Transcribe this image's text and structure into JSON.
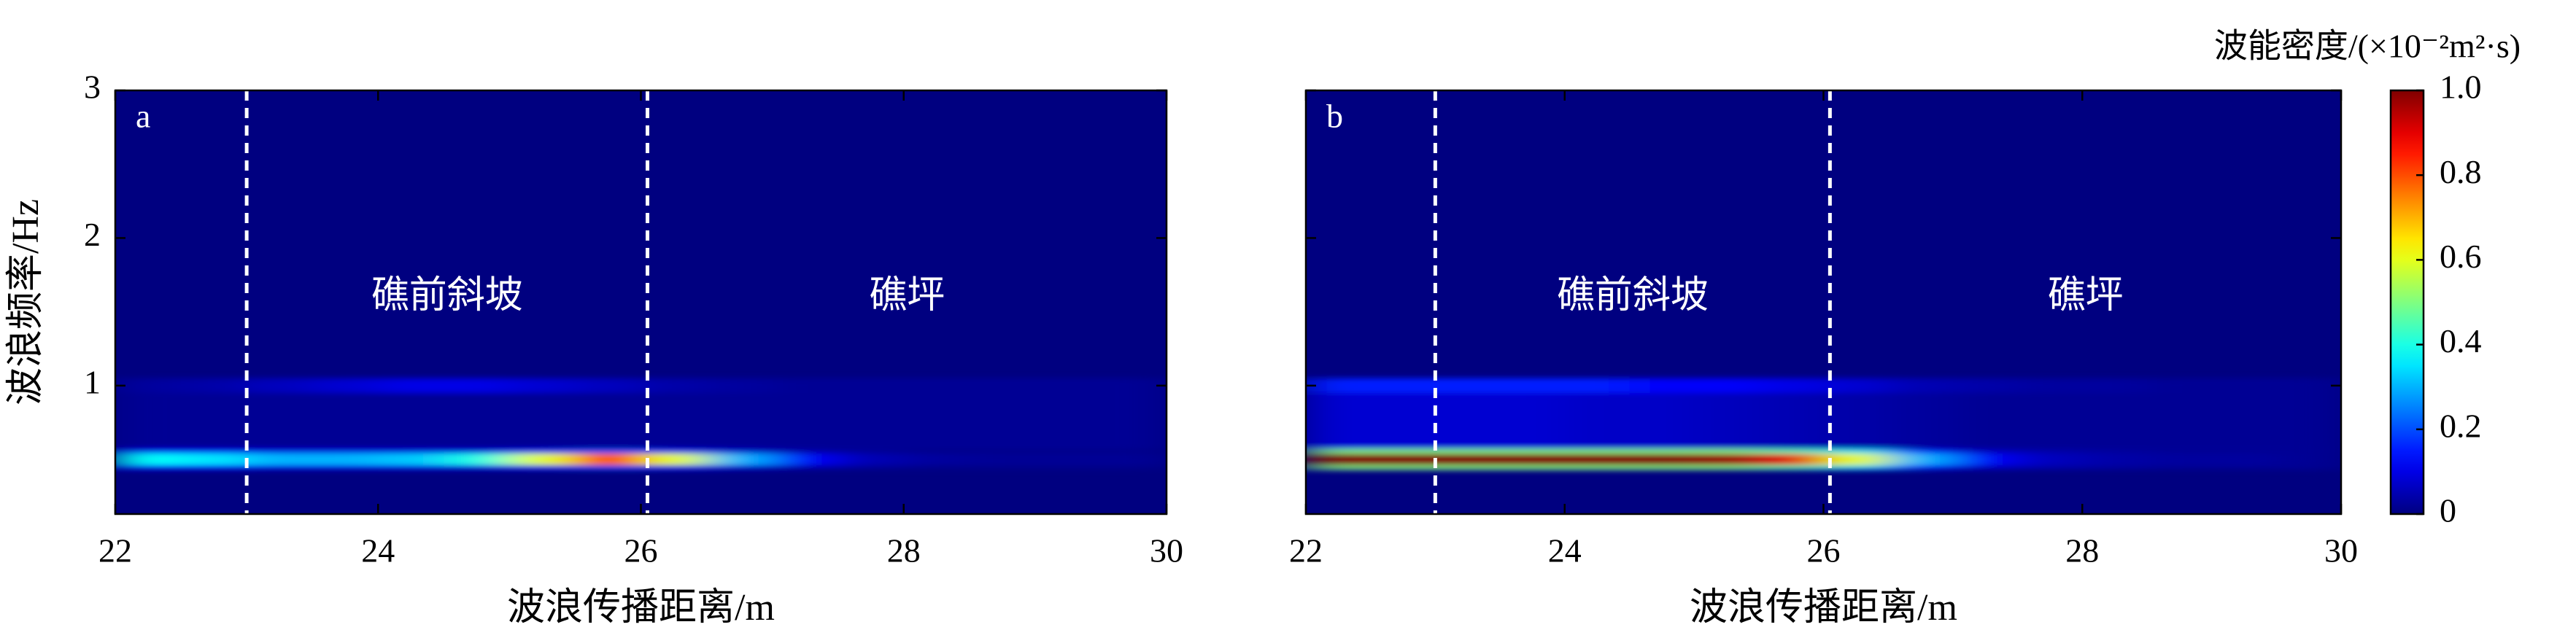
{
  "chart_data": [
    {
      "type": "heatmap",
      "panel_label": "a",
      "x_label": "波浪传播距离/m",
      "y_label": "波浪频率/Hz",
      "annotations": [
        "礁前斜坡",
        "礁坪"
      ],
      "xlim": [
        22,
        30
      ],
      "xticks": [
        22,
        24,
        26,
        28,
        30
      ],
      "ylim": [
        0.13,
        3
      ],
      "yticks": [
        1,
        2,
        3
      ],
      "vlines": [
        23,
        26.05
      ],
      "xbins": [
        22,
        22.5,
        23,
        23.5,
        24,
        24.5,
        25,
        25.5,
        26,
        26.5,
        27,
        27.5,
        28,
        28.5,
        29,
        29.5,
        30
      ],
      "ybins": [
        0.43,
        0.46,
        0.54,
        0.57,
        0.95,
        1.05
      ],
      "values": [
        [
          0.12,
          0.12,
          0.1,
          0.1,
          0.1,
          0.1,
          0.15,
          0.2,
          0.15,
          0.08,
          0.04,
          0.02,
          0.01,
          0.01,
          0.01,
          0.01
        ],
        [
          0.38,
          0.35,
          0.3,
          0.3,
          0.32,
          0.4,
          0.6,
          0.85,
          0.6,
          0.3,
          0.12,
          0.05,
          0.03,
          0.02,
          0.02,
          0.02
        ],
        [
          0.12,
          0.12,
          0.1,
          0.1,
          0.1,
          0.1,
          0.15,
          0.2,
          0.15,
          0.08,
          0.04,
          0.02,
          0.01,
          0.01,
          0.01,
          0.01
        ],
        [
          0.02,
          0.02,
          0.02,
          0.02,
          0.02,
          0.02,
          0.02,
          0.02,
          0.02,
          0.02,
          0.02,
          0.02,
          0.02,
          0.02,
          0.02,
          0.02
        ],
        [
          0.03,
          0.04,
          0.06,
          0.08,
          0.1,
          0.1,
          0.08,
          0.06,
          0.04,
          0.03,
          0.02,
          0.02,
          0.02,
          0.02,
          0.02,
          0.02
        ]
      ]
    },
    {
      "type": "heatmap",
      "panel_label": "b",
      "x_label": "波浪传播距离/m",
      "annotations": [
        "礁前斜坡",
        "礁坪"
      ],
      "xlim": [
        22,
        30
      ],
      "xticks": [
        22,
        24,
        26,
        28,
        30
      ],
      "ylim": [
        0.13,
        3
      ],
      "yticks": [
        1,
        2,
        3
      ],
      "vlines": [
        23,
        26.05
      ],
      "xbins": [
        22,
        22.5,
        23,
        23.5,
        24,
        24.5,
        25,
        25.5,
        26,
        26.5,
        27,
        27.5,
        28,
        28.5,
        29,
        29.5,
        30
      ],
      "ybins": [
        0.43,
        0.46,
        0.54,
        0.57,
        0.95,
        1.05
      ],
      "values": [
        [
          0.5,
          0.5,
          0.5,
          0.5,
          0.5,
          0.5,
          0.5,
          0.45,
          0.35,
          0.15,
          0.06,
          0.04,
          0.03,
          0.02,
          0.02,
          0.02
        ],
        [
          1,
          1,
          1,
          1,
          1,
          1,
          0.98,
          0.9,
          0.6,
          0.3,
          0.12,
          0.06,
          0.04,
          0.03,
          0.03,
          0.02
        ],
        [
          0.5,
          0.5,
          0.5,
          0.5,
          0.5,
          0.5,
          0.5,
          0.45,
          0.35,
          0.15,
          0.06,
          0.04,
          0.03,
          0.02,
          0.02,
          0.02
        ],
        [
          0.08,
          0.08,
          0.08,
          0.08,
          0.07,
          0.07,
          0.06,
          0.05,
          0.04,
          0.03,
          0.02,
          0.02,
          0.02,
          0.02,
          0.02,
          0.02
        ],
        [
          0.15,
          0.15,
          0.15,
          0.15,
          0.15,
          0.12,
          0.12,
          0.1,
          0.08,
          0.05,
          0.04,
          0.03,
          0.03,
          0.02,
          0.02,
          0.02
        ]
      ],
      "colorbar": {
        "title": "波能密度/(×10⁻²m²·s)",
        "lim": [
          0,
          1
        ],
        "ticks": [
          0,
          0.2,
          0.4,
          0.6,
          0.8,
          {
            "value": 1,
            "label": "1.0"
          }
        ]
      }
    }
  ]
}
